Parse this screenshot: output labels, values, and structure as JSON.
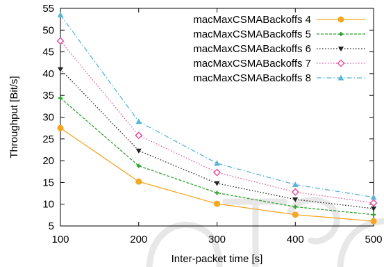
{
  "chart_data": {
    "type": "line",
    "title": "",
    "xlabel": "Inter-packet time [s]",
    "ylabel": "Throughput [Bit/s]",
    "x": [
      100,
      200,
      300,
      400,
      500
    ],
    "xlim": [
      100,
      500
    ],
    "ylim": [
      5,
      55
    ],
    "xticks": [
      100,
      200,
      300,
      400,
      500
    ],
    "yticks": [
      5,
      10,
      15,
      20,
      25,
      30,
      35,
      40,
      45,
      50,
      55
    ],
    "grid": false,
    "legend_position": "top-right",
    "series": [
      {
        "name": "macMaxCSMABackoffs 4",
        "values": [
          27.5,
          15.2,
          10.1,
          7.6,
          6.1
        ],
        "color": "#f5a623",
        "dash": "solid",
        "marker": "circle"
      },
      {
        "name": "macMaxCSMABackoffs 5",
        "values": [
          34.4,
          18.8,
          12.6,
          9.4,
          7.6
        ],
        "color": "#2ca02c",
        "dash": "short",
        "marker": "plus"
      },
      {
        "name": "macMaxCSMABackoffs 6",
        "values": [
          41.0,
          22.3,
          14.8,
          11.1,
          9.0
        ],
        "color": "#222222",
        "dash": "dot",
        "marker": "triangle-down"
      },
      {
        "name": "macMaxCSMABackoffs 7",
        "values": [
          47.5,
          25.8,
          17.3,
          12.8,
          10.3
        ],
        "color": "#e8559c",
        "dash": "dot",
        "marker": "diamond"
      },
      {
        "name": "macMaxCSMABackoffs 8",
        "values": [
          53.5,
          29.0,
          19.4,
          14.5,
          11.6
        ],
        "color": "#5ab4d6",
        "dash": "dashdot",
        "marker": "triangle-up"
      }
    ]
  }
}
